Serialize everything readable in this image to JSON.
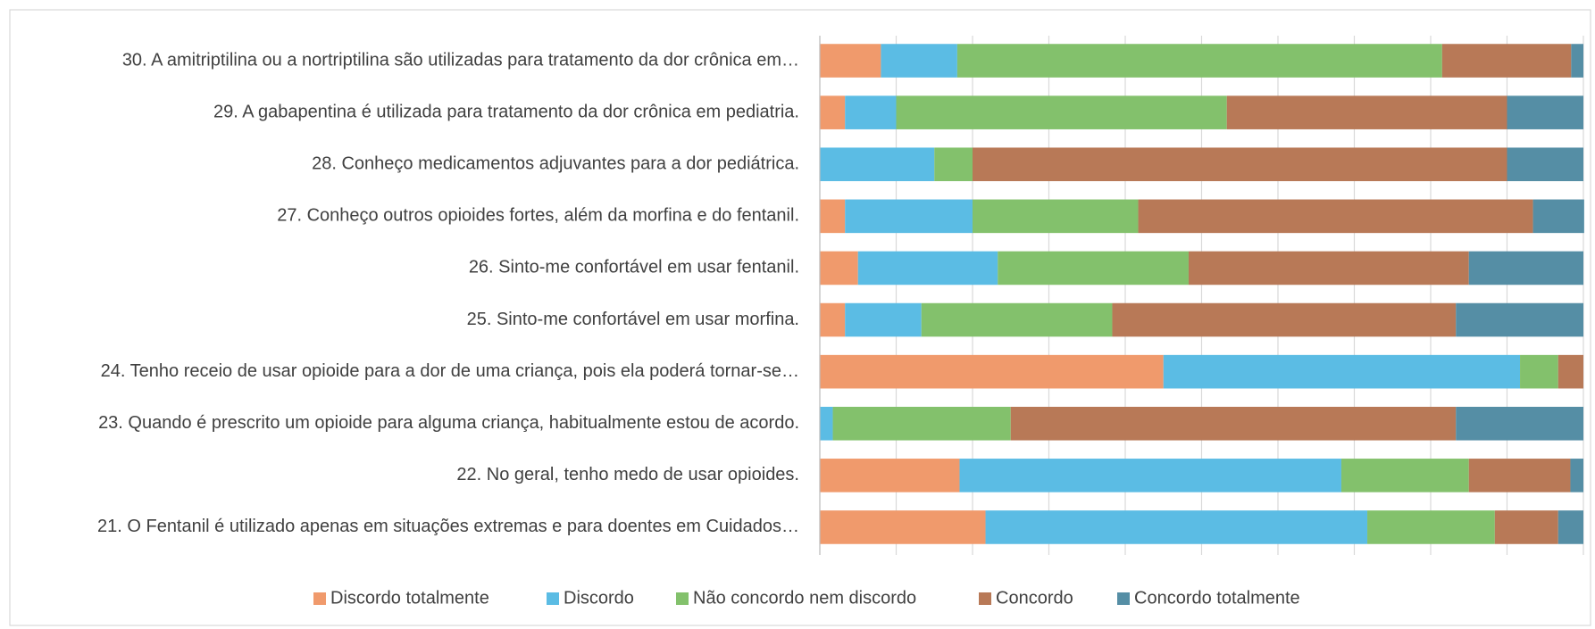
{
  "chart_data": {
    "type": "stacked_bar_horizontal",
    "categories": [
      "30. A amitriptilina ou a nortriptilina são utilizadas para tratamento da dor crônica em…",
      "29. A gabapentina é utilizada para tratamento da dor crônica em pediatria.",
      "28. Conheço medicamentos adjuvantes para a dor pediátrica.",
      "27. Conheço outros opioides fortes, além da morfina e do fentanil.",
      "26. Sinto-me confortável em usar fentanil.",
      "25. Sinto-me confortável em usar morfina.",
      "24. Tenho receio de usar opioide para a dor de uma criança, pois ela poderá tornar-se…",
      "23. Quando é prescrito um opioide para alguma criança, habitualmente estou de acordo.",
      "22. No geral, tenho medo de usar opioides.",
      "21. O Fentanil é utilizado apenas em situações extremas e para doentes em Cuidados…"
    ],
    "series": [
      {
        "name": "Discordo totalmente",
        "color": "#F09A6C",
        "values": [
          8,
          3.3,
          0,
          3.3,
          5,
          3.3,
          45,
          0,
          18.3,
          21.7
        ]
      },
      {
        "name": "Discordo",
        "color": "#5BBCE4",
        "values": [
          10,
          6.7,
          15,
          16.7,
          18.3,
          10,
          46.7,
          1.7,
          50,
          50
        ]
      },
      {
        "name": "Não concordo nem discordo",
        "color": "#83C16C",
        "values": [
          63.5,
          43.3,
          5,
          21.7,
          25,
          25,
          5,
          23.3,
          16.7,
          16.7
        ]
      },
      {
        "name": "Concordo",
        "color": "#B87957",
        "values": [
          16.9,
          36.7,
          70,
          51.7,
          36.7,
          45,
          3.3,
          58.3,
          13.3,
          8.3
        ]
      },
      {
        "name": "Concordo totalmente",
        "color": "#558EA5",
        "values": [
          1.6,
          10,
          10,
          6.7,
          15,
          16.7,
          0,
          16.7,
          1.7,
          3.3
        ]
      }
    ],
    "xlim": [
      0,
      100
    ],
    "xticks": [
      0,
      10,
      20,
      30,
      40,
      50,
      60,
      70,
      80,
      90,
      100
    ],
    "grid": true,
    "legend": "bottom"
  }
}
